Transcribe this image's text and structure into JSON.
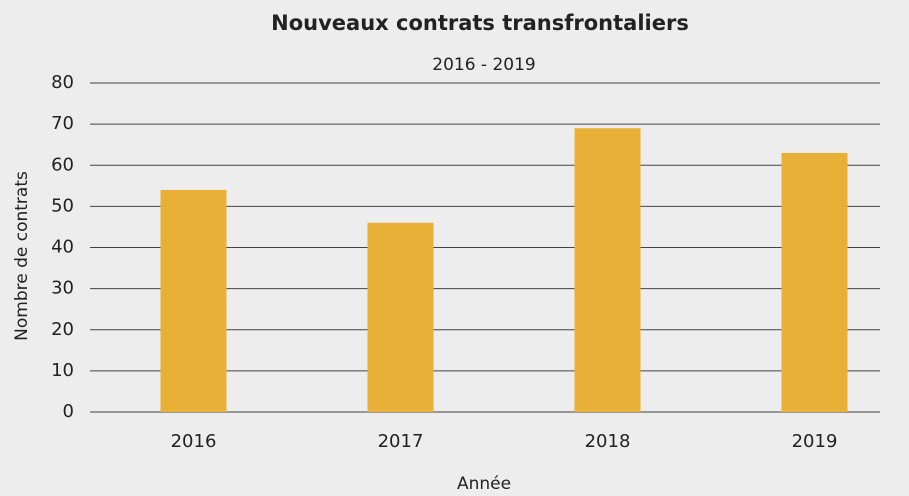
{
  "chart_data": {
    "type": "bar",
    "title": "Nouveaux contrats transfrontaliers",
    "subtitle": "2016 - 2019",
    "x_label": "Année",
    "y_label": "Nombre de contrats",
    "categories": [
      "2016",
      "2017",
      "2018",
      "2019"
    ],
    "values": [
      54,
      46,
      69,
      63
    ],
    "color": "#e9b037",
    "ylim": [
      0,
      80
    ],
    "yticks": [
      0,
      10,
      20,
      30,
      40,
      50,
      60,
      70,
      80
    ],
    "grid": true
  }
}
